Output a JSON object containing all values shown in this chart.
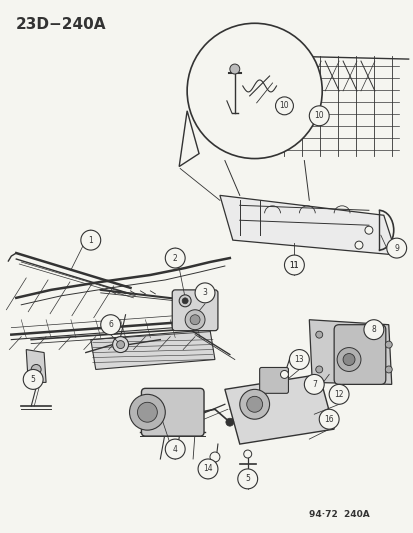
{
  "title_code": "23D−240A",
  "footer_code": "94·72  240A",
  "bg_color": "#f5f5f0",
  "line_color": "#333333",
  "fig_width": 4.14,
  "fig_height": 5.33,
  "dpi": 100,
  "title_fontsize": 11,
  "footer_fontsize": 6.5,
  "circle_r": 0.022
}
